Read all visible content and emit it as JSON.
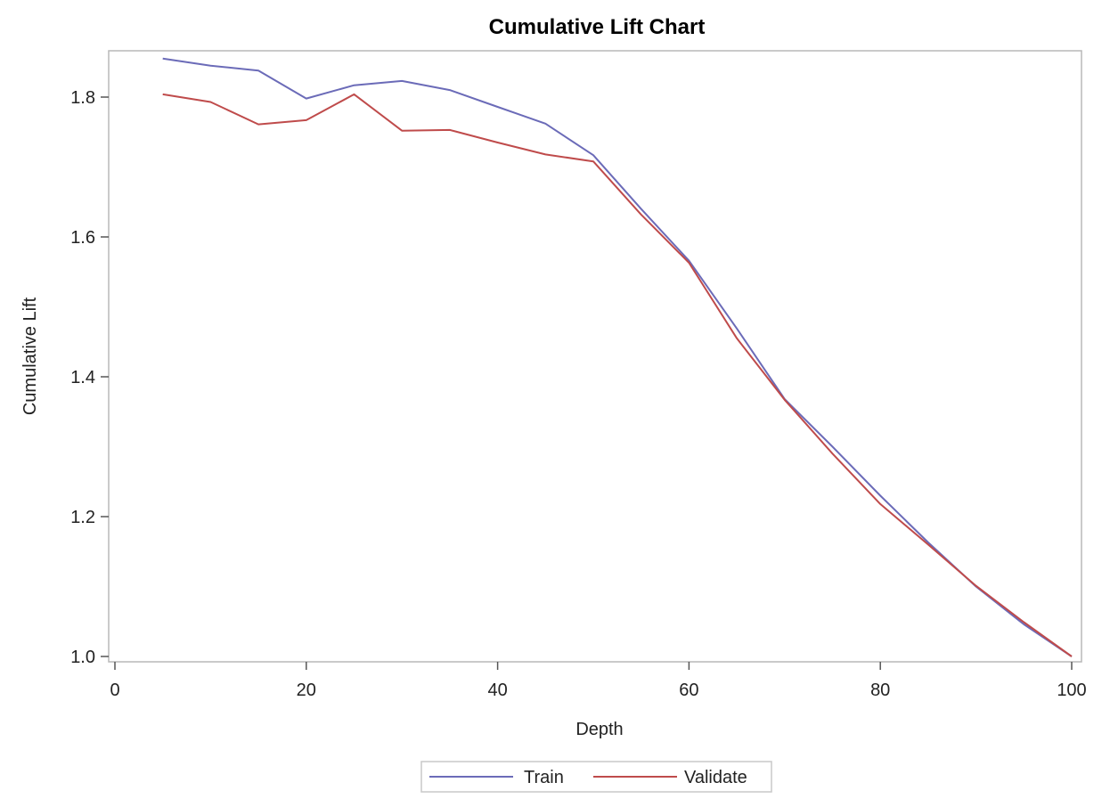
{
  "chart_data": {
    "type": "line",
    "title": "Cumulative Lift Chart",
    "xlabel": "Depth",
    "ylabel": "Cumulative Lift",
    "xlim": [
      0,
      100
    ],
    "ylim": [
      1.0,
      1.86
    ],
    "xticks": [
      0,
      20,
      40,
      60,
      80,
      100
    ],
    "yticks": [
      1.0,
      1.2,
      1.4,
      1.6,
      1.8
    ],
    "xtick_labels": [
      "0",
      "20",
      "40",
      "60",
      "80",
      "100"
    ],
    "ytick_labels": [
      "1.0",
      "1.2",
      "1.4",
      "1.6",
      "1.8"
    ],
    "grid": false,
    "legend_position": "bottom",
    "x": [
      5,
      10,
      15,
      20,
      25,
      30,
      35,
      40,
      45,
      50,
      55,
      60,
      65,
      70,
      75,
      80,
      85,
      90,
      95,
      100
    ],
    "series": [
      {
        "name": "Train",
        "color": "#6b6bb8",
        "values": [
          1.855,
          1.845,
          1.838,
          1.798,
          1.817,
          1.823,
          1.81,
          1.786,
          1.762,
          1.717,
          1.64,
          1.566,
          1.469,
          1.368,
          1.3,
          1.23,
          1.163,
          1.1,
          1.046,
          1.0
        ]
      },
      {
        "name": "Validate",
        "color": "#bf4b4b",
        "values": [
          1.804,
          1.793,
          1.761,
          1.767,
          1.804,
          1.752,
          1.753,
          1.735,
          1.718,
          1.708,
          1.632,
          1.563,
          1.455,
          1.367,
          1.29,
          1.218,
          1.16,
          1.101,
          1.049,
          1.0
        ]
      }
    ]
  }
}
